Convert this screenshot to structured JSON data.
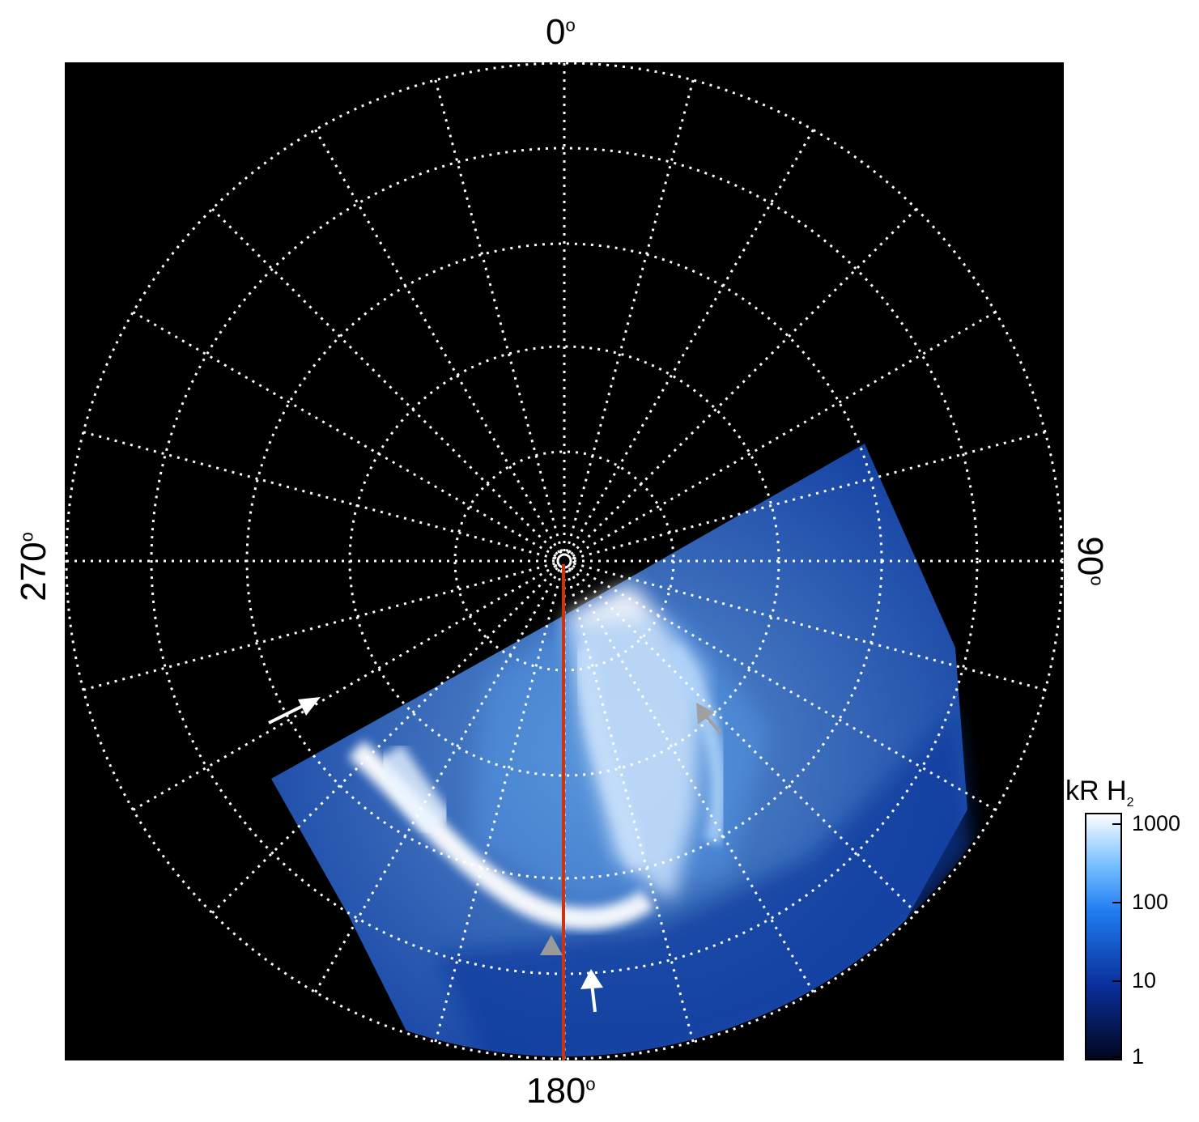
{
  "axis_labels": {
    "top": "0",
    "right": "90",
    "bottom": "180",
    "left": "270",
    "degree_symbol": "o"
  },
  "colorbar": {
    "title_main": "kR H",
    "title_sub": "2",
    "scale": "log",
    "ticks": [
      "1000",
      "100",
      "10",
      "1"
    ],
    "colors": [
      "#ffffff",
      "#7cc2ff",
      "#1f7cf0",
      "#0a2f9a",
      "#02061e"
    ]
  },
  "colors": {
    "background": "#000000",
    "grid": "#ffffff",
    "meridian_line": "#cc3311",
    "aurora_main": "#3a86ee",
    "aurora_bright": "#ffffff",
    "arrow_white": "#ffffff",
    "arrow_grey": "#a0a0a0"
  },
  "markers": [
    {
      "name": "white-arrow-left",
      "color": "white"
    },
    {
      "name": "grey-arrow-right",
      "color": "grey"
    },
    {
      "name": "grey-arrowhead-bottom",
      "color": "grey"
    },
    {
      "name": "white-arrow-bottom",
      "color": "white"
    }
  ]
}
